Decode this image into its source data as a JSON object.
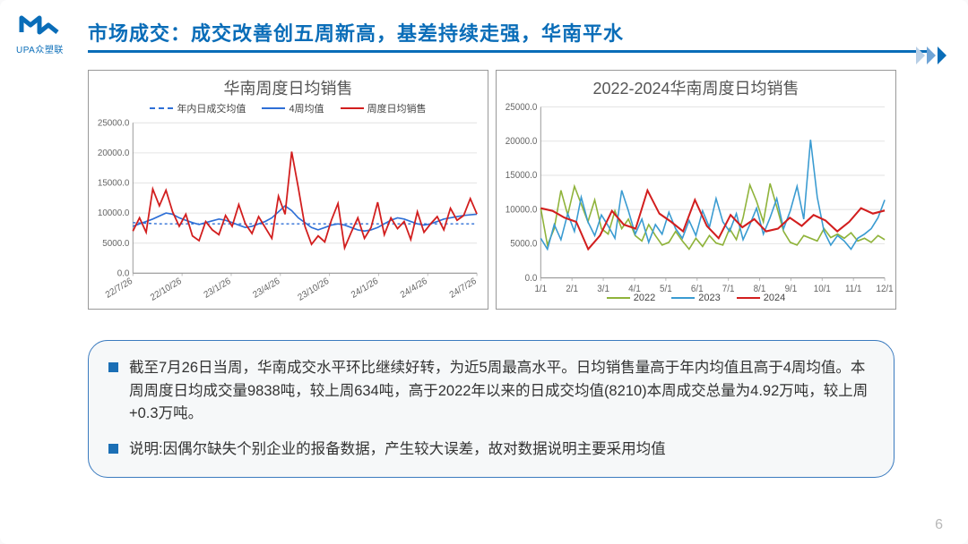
{
  "logo_text": "UPA众塑联",
  "title": "市场成交：成交改善创五周新高，基差持续走强，华南平水",
  "page_number": "6",
  "notes": [
    "截至7月26日当周，华南成交水平环比继续好转，为近5周最高水平。日均销售量高于年内均值且高于4周均值。本周周度日均成交量9838吨，较上周634吨，高于2022年以来的日成交均值(8210)本周成交总量为4.92万吨，较上周+0.3万吨。",
    "说明:因偶尔缺失个别企业的报备数据，产生较大误差，故对数据说明主要采用均值"
  ],
  "chart_left": {
    "type": "line",
    "title": "华南周度日均销售",
    "legend": [
      {
        "label": "年内日成交均值",
        "color": "#2e6fd6",
        "dash": true
      },
      {
        "label": "4周均值",
        "color": "#2e6fd6",
        "dash": false
      },
      {
        "label": "周度日均销售",
        "color": "#d21e1e",
        "dash": false
      }
    ],
    "ylim": [
      0,
      25000
    ],
    "ytick_step": 5000,
    "x_labels": [
      "22/7/26",
      "22/10/26",
      "23/1/26",
      "23/4/26",
      "23/10/26",
      "24/1/26",
      "24/4/26",
      "24/7/26"
    ],
    "background_color": "#ffffff",
    "grid_color": "#e4e4e4",
    "series_avg": [
      8400,
      8350,
      8300,
      8250,
      8200,
      8200,
      8210,
      8210,
      8210,
      8210,
      8210,
      8210,
      8210,
      8210,
      8210,
      8210,
      8210,
      8210,
      8210,
      8210,
      8210,
      8210,
      8210,
      8210,
      8210,
      8210,
      8210,
      8210,
      8210,
      8210,
      8210,
      8210,
      8210,
      8210,
      8210,
      8210,
      8210,
      8210,
      8210,
      8210,
      8210,
      8210,
      8210,
      8210,
      8210,
      8210,
      8210,
      8210,
      8210,
      8210,
      8210,
      8210,
      8210
    ],
    "series_4wk": [
      7800,
      8200,
      8600,
      9000,
      9500,
      10000,
      9800,
      9200,
      8800,
      8400,
      8100,
      8400,
      8700,
      9000,
      8800,
      8400,
      8000,
      7600,
      7800,
      8200,
      8600,
      9200,
      10200,
      11200,
      10400,
      9200,
      8400,
      7600,
      7200,
      7600,
      8000,
      8200,
      8000,
      7600,
      7200,
      7000,
      7200,
      7600,
      8200,
      8800,
      9200,
      9000,
      8600,
      8200,
      8000,
      8200,
      8600,
      9000,
      9200,
      9400,
      9600,
      9700,
      9800
    ],
    "series_weekly": [
      7000,
      9200,
      6800,
      14000,
      11200,
      13800,
      10200,
      7800,
      9800,
      6200,
      5400,
      8600,
      7200,
      6400,
      9600,
      7800,
      11400,
      8200,
      6600,
      9400,
      7600,
      5800,
      12800,
      9800,
      20200,
      14200,
      7800,
      4800,
      6200,
      5200,
      8800,
      11600,
      4200,
      6800,
      9200,
      5800,
      7600,
      11800,
      6400,
      9200,
      7400,
      8600,
      5600,
      10200,
      6800,
      8200,
      9400,
      7200,
      10800,
      8800,
      9600,
      12400,
      9838
    ]
  },
  "chart_right": {
    "type": "line",
    "title": "2022-2024华南周度日均销售",
    "legend": [
      {
        "label": "2022",
        "color": "#8fb33a"
      },
      {
        "label": "2023",
        "color": "#3a9bd1"
      },
      {
        "label": "2024",
        "color": "#d21e1e"
      }
    ],
    "ylim": [
      0,
      25000
    ],
    "ytick_step": 5000,
    "x_labels": [
      "1/1",
      "2/1",
      "3/1",
      "4/1",
      "5/1",
      "6/1",
      "7/1",
      "8/1",
      "9/1",
      "10/1",
      "11/1",
      "12/1"
    ],
    "background_color": "#ffffff",
    "grid_color": "#e4e4e4",
    "series_2022": [
      10200,
      4800,
      7200,
      12800,
      9200,
      13400,
      10800,
      8200,
      11400,
      7200,
      6400,
      9800,
      7200,
      8600,
      6200,
      5400,
      7800,
      6200,
      4800,
      5200,
      6800,
      5400,
      4200,
      5800,
      4600,
      6200,
      5100,
      4800,
      7200,
      5600,
      8800,
      13600,
      11200,
      8200,
      13800,
      10400,
      6800,
      5200,
      4800,
      6200,
      5800,
      5400,
      7200,
      5900,
      6400,
      5800,
      6600,
      5400,
      5800,
      5200,
      6200,
      5600
    ],
    "series_2023": [
      5800,
      4200,
      7800,
      5600,
      9400,
      6800,
      11800,
      8200,
      6200,
      9200,
      7600,
      5800,
      12800,
      9800,
      6400,
      8600,
      5200,
      7800,
      6400,
      9600,
      7200,
      5800,
      8400,
      6200,
      9800,
      7400,
      11600,
      8200,
      6800,
      9400,
      5600,
      7800,
      10200,
      6400,
      8800,
      11600,
      7200,
      9800,
      13400,
      8600,
      20200,
      11800,
      6800,
      4800,
      6200,
      5400,
      4200,
      5800,
      6400,
      7200,
      8800,
      11400
    ],
    "series_2024": [
      10200,
      9800,
      8800,
      8200,
      4200,
      6200,
      9800,
      7800,
      7200,
      12800,
      9400,
      8200,
      6800,
      11400,
      7600,
      5800,
      9200,
      7400,
      8600,
      6800,
      7200,
      8800,
      7600,
      9200,
      8400,
      6800,
      8200,
      10200,
      9400,
      9838
    ]
  }
}
